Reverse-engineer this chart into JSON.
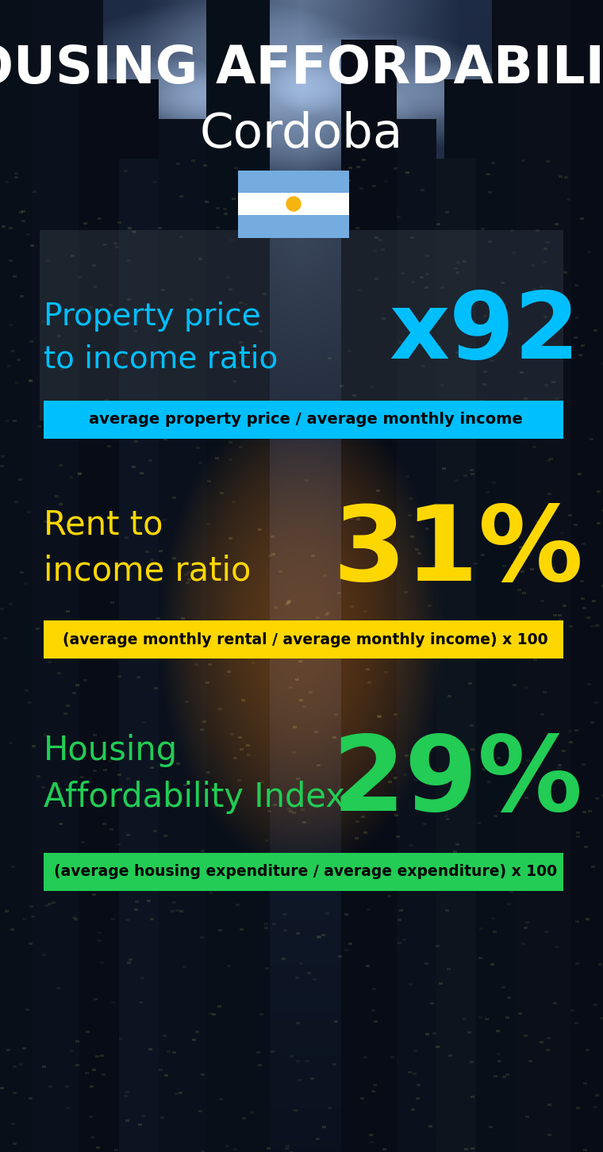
{
  "title_line1": "HOUSING AFFORDABILITY",
  "title_line2": "Cordoba",
  "section1_label": "Property price\nto income ratio",
  "section1_value": "x92",
  "section1_label_color": "#00BFFF",
  "section1_value_color": "#00BFFF",
  "section1_formula": "average property price / average monthly income",
  "section1_formula_bg": "#00BFFF",
  "section2_label": "Rent to\nincome ratio",
  "section2_value": "31%",
  "section2_label_color": "#FFD700",
  "section2_value_color": "#FFD700",
  "section2_formula": "(average monthly rental / average monthly income) x 100",
  "section2_formula_bg": "#FFD700",
  "section3_label": "Housing\nAffordability Index",
  "section3_value": "29%",
  "section3_label_color": "#22CC55",
  "section3_value_color": "#22CC55",
  "section3_formula": "(average housing expenditure / average expenditure) x 100",
  "section3_formula_bg": "#22CC55",
  "bg_color": "#060e1a",
  "title_color": "#FFFFFF",
  "formula_text_color": "#000000",
  "flag_blue": "#74ACDF",
  "flag_white": "#FFFFFF",
  "flag_sun": "#F6B40E"
}
